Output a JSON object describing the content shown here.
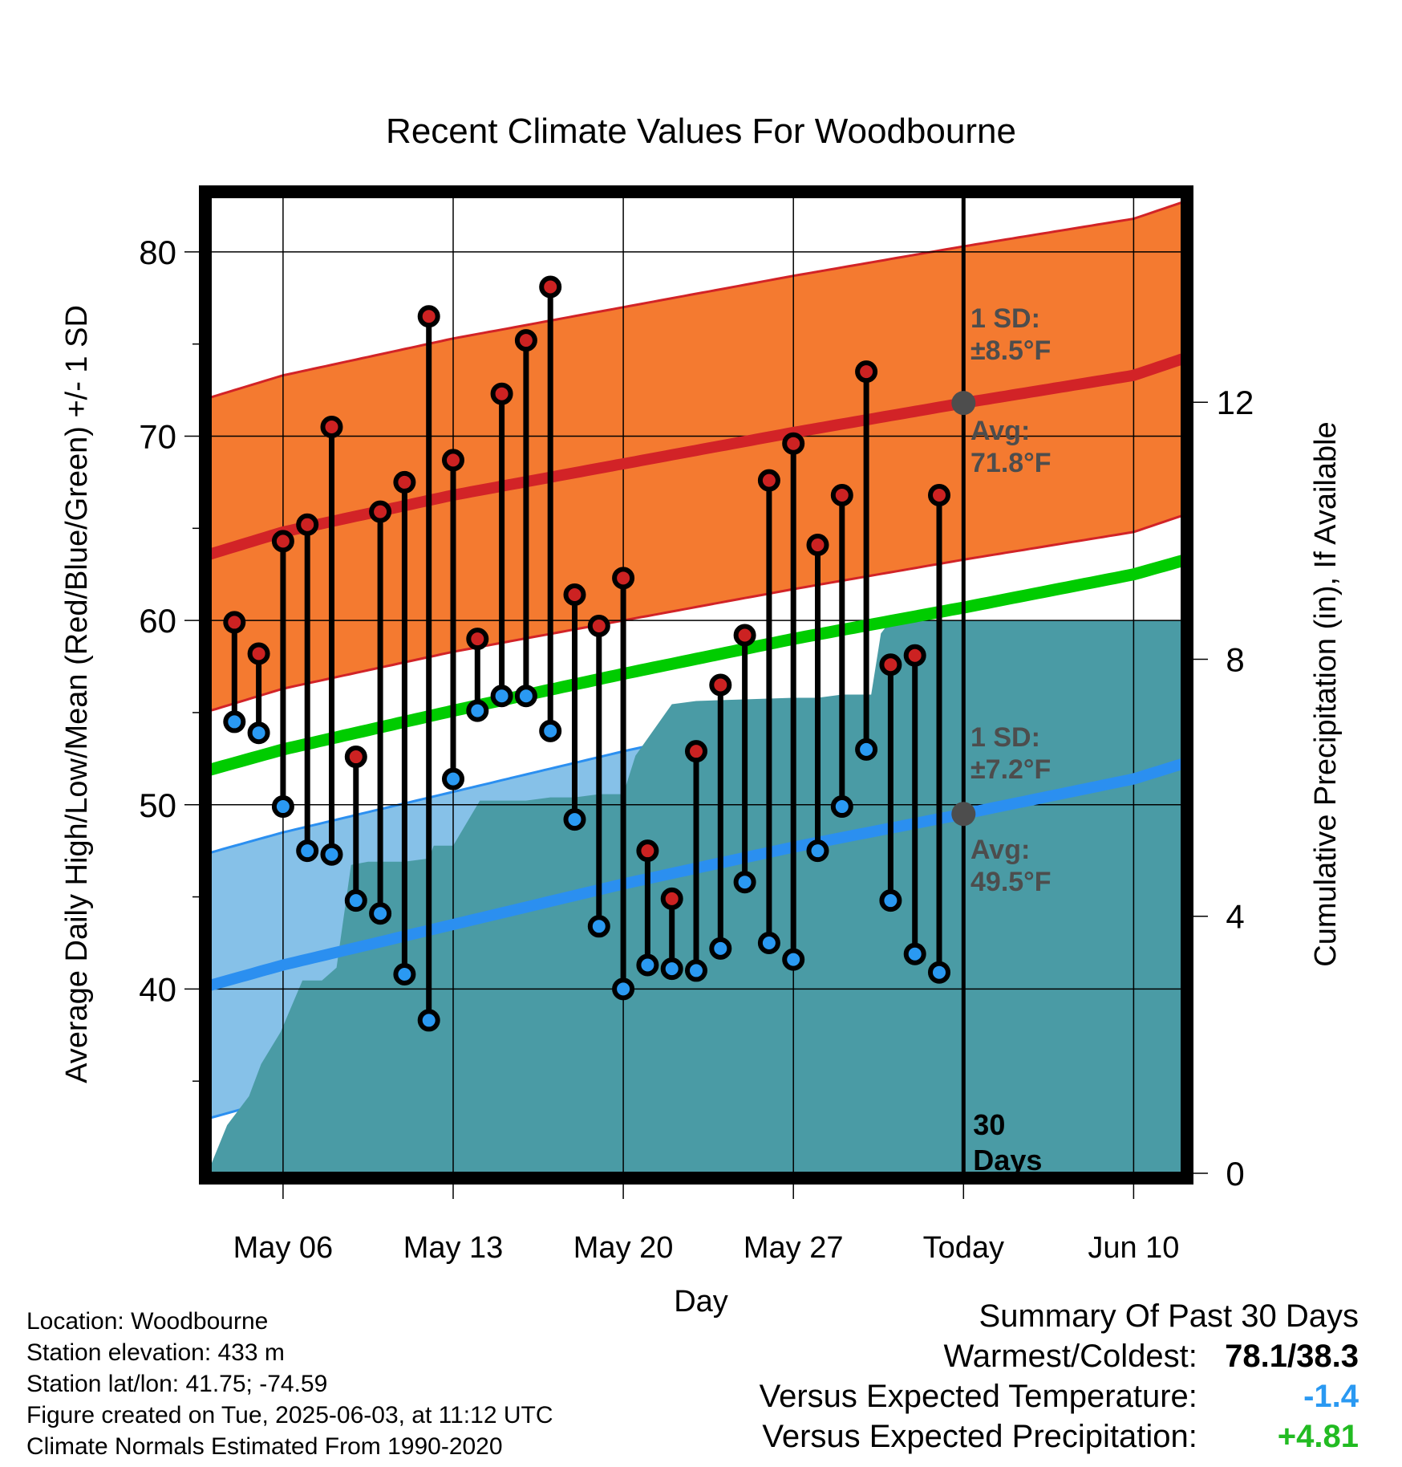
{
  "chart_data": {
    "type": "line",
    "title": "Recent Climate Values For Woodbourne",
    "xlabel": "Day",
    "ylabel_left": "Average Daily High/Low/Mean (Red/Blue/Green) +/- 1 SD",
    "ylabel_right": "Cumulative Precipitation (in), If Available",
    "x_ticks": [
      {
        "day": 6,
        "label": "May 06"
      },
      {
        "day": 13,
        "label": "May 13"
      },
      {
        "day": 20,
        "label": "May 20"
      },
      {
        "day": 27,
        "label": "May 27"
      },
      {
        "day": 34,
        "label": "Today"
      },
      {
        "day": 41,
        "label": "Jun 10"
      }
    ],
    "xlim": [
      "2025-05-03",
      "2025-06-12"
    ],
    "ylim_left": [
      30,
      83
    ],
    "yticks_left": [
      40,
      50,
      60,
      70,
      80
    ],
    "ylim_right": [
      0,
      15.2
    ],
    "yticks_right": [
      0,
      4,
      8,
      12
    ],
    "today_label": "30\nDays",
    "high_annotation": {
      "sd": "1 SD:",
      "sd_value": "±8.5°F",
      "avg": "Avg:",
      "avg_value": "71.8°F"
    },
    "low_annotation": {
      "sd": "1 SD:",
      "sd_value": "±7.2°F",
      "avg": "Avg:",
      "avg_value": "49.5°F"
    },
    "normals": {
      "days": [
        3,
        6,
        13,
        20,
        27,
        34,
        41,
        43.7
      ],
      "avg_high": [
        63.6,
        64.8,
        66.8,
        68.5,
        70.2,
        71.8,
        73.3,
        74.5
      ],
      "avg_low": [
        40.2,
        41.3,
        43.5,
        45.7,
        47.7,
        49.5,
        51.4,
        52.5
      ],
      "avg_mean": [
        51.9,
        53.0,
        55.1,
        57.1,
        59.0,
        60.7,
        62.5,
        63.5
      ],
      "high_sd": 8.5,
      "low_sd": 7.2
    },
    "series": [
      {
        "name": "High",
        "dates": [
          "2025-05-04",
          "2025-05-05",
          "2025-05-06",
          "2025-05-07",
          "2025-05-08",
          "2025-05-09",
          "2025-05-10",
          "2025-05-11",
          "2025-05-12",
          "2025-05-13",
          "2025-05-14",
          "2025-05-15",
          "2025-05-16",
          "2025-05-17",
          "2025-05-18",
          "2025-05-19",
          "2025-05-20",
          "2025-05-21",
          "2025-05-22",
          "2025-05-23",
          "2025-05-24",
          "2025-05-25",
          "2025-05-26",
          "2025-05-27",
          "2025-05-28",
          "2025-05-29",
          "2025-05-30",
          "2025-05-31",
          "2025-06-01",
          "2025-06-02"
        ],
        "values": [
          59.9,
          58.2,
          64.3,
          65.2,
          70.5,
          52.6,
          65.9,
          67.5,
          76.5,
          68.7,
          59.0,
          72.3,
          75.2,
          78.1,
          61.4,
          59.7,
          62.3,
          47.5,
          44.9,
          52.9,
          56.5,
          59.2,
          67.6,
          69.6,
          64.1,
          66.8,
          73.5,
          57.6,
          58.1,
          66.8
        ]
      },
      {
        "name": "Low",
        "dates": [
          "2025-05-04",
          "2025-05-05",
          "2025-05-06",
          "2025-05-07",
          "2025-05-08",
          "2025-05-09",
          "2025-05-10",
          "2025-05-11",
          "2025-05-12",
          "2025-05-13",
          "2025-05-14",
          "2025-05-15",
          "2025-05-16",
          "2025-05-17",
          "2025-05-18",
          "2025-05-19",
          "2025-05-20",
          "2025-05-21",
          "2025-05-22",
          "2025-05-23",
          "2025-05-24",
          "2025-05-25",
          "2025-05-26",
          "2025-05-27",
          "2025-05-28",
          "2025-05-29",
          "2025-05-30",
          "2025-05-31",
          "2025-06-01",
          "2025-06-02"
        ],
        "values": [
          54.5,
          53.9,
          49.9,
          47.5,
          47.3,
          44.8,
          44.1,
          40.8,
          38.3,
          51.4,
          55.1,
          55.9,
          55.9,
          54.0,
          49.2,
          43.4,
          40.0,
          41.3,
          41.1,
          41.0,
          42.2,
          45.8,
          42.5,
          41.6,
          47.5,
          49.9,
          53.0,
          44.8,
          41.9,
          40.9
        ]
      },
      {
        "name": "Cumulative Precipitation",
        "days": [
          3,
          3.7,
          4.6,
          5.1,
          5.9,
          6.8,
          7.6,
          8.2,
          8.8,
          9.5,
          11,
          12,
          12.2,
          13,
          14.1,
          16,
          17,
          18,
          19,
          20,
          20.5,
          22,
          23,
          27,
          28,
          29,
          30.2,
          30.6,
          31,
          32,
          34,
          43.7
        ],
        "values": [
          0.1,
          0.75,
          1.2,
          1.7,
          2.2,
          3.0,
          3.0,
          3.2,
          4.8,
          4.85,
          4.85,
          4.9,
          5.1,
          5.1,
          5.8,
          5.8,
          5.85,
          5.85,
          5.9,
          5.9,
          6.5,
          7.3,
          7.35,
          7.4,
          7.4,
          7.45,
          7.45,
          8.4,
          8.6,
          8.6,
          8.6,
          8.6
        ]
      }
    ],
    "colors": {
      "high_band": "#f47a30",
      "high_line": "#d22327",
      "low_band": "#86c1e8",
      "low_line": "#2b8ff0",
      "mean_line": "#00cc00",
      "precip": "#4a9ba5",
      "high_dot": "#cc2222",
      "low_dot": "#2a99f2",
      "annot": "#4d4d4d"
    }
  },
  "info": {
    "location": "Location: Woodbourne",
    "elevation": "Station elevation: 433 m",
    "latlon": "Station lat/lon: 41.75; -74.59",
    "created": "Figure created on Tue, 2025-06-03, at 11:12 UTC",
    "normals": "Climate Normals Estimated From 1990-2020"
  },
  "summary": {
    "heading": "Summary Of Past 30 Days",
    "warm_cold_label": "Warmest/Coldest:",
    "warm_cold_value": "78.1/38.3",
    "temp_label": "Versus Expected Temperature:",
    "temp_value": "-1.4",
    "temp_color": "#2a99f2",
    "precip_label": "Versus Expected Precipitation:",
    "precip_value": "+4.81",
    "precip_color": "#22bb22"
  }
}
